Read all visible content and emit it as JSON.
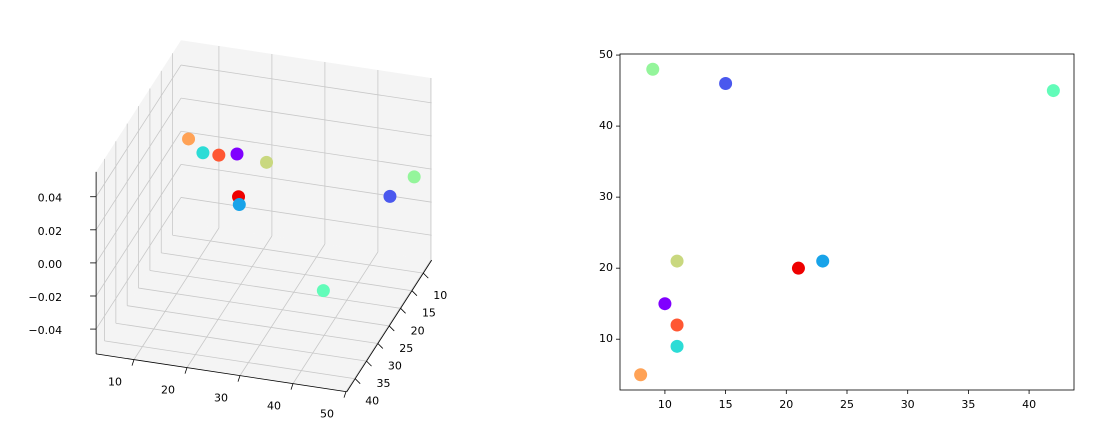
{
  "chart_data": [
    {
      "type": "scatter3d",
      "x": [
        9,
        15,
        42,
        11,
        21,
        23,
        10,
        11,
        11,
        8
      ],
      "y": [
        48,
        46,
        45,
        21,
        20,
        21,
        15,
        12,
        9,
        5
      ],
      "z": [
        0,
        0,
        0,
        0,
        0,
        0,
        0,
        0,
        0,
        0
      ],
      "colors": [
        "#94f59b",
        "#4a58ee",
        "#62fcb9",
        "#c9d87f",
        "#ee0000",
        "#18a3e9",
        "#8000ff",
        "#ff5733",
        "#2cdcd6",
        "#ffa256"
      ],
      "xlim": [
        6.3,
        43.7
      ],
      "ylim": [
        2.85,
        50.15
      ],
      "zlim": [
        -0.055,
        0.055
      ],
      "xticks": [
        10,
        15,
        20,
        25,
        30,
        35,
        40
      ],
      "yticks": [
        10,
        20,
        30,
        40,
        50
      ],
      "zticks": [
        {
          "value": -0.04,
          "label": "−0.04"
        },
        {
          "value": -0.02,
          "label": "−0.02"
        },
        {
          "value": 0,
          "label": "0.00"
        },
        0.02,
        0.04
      ],
      "grid": true
    },
    {
      "type": "scatter",
      "x": [
        9,
        15,
        42,
        11,
        21,
        23,
        10,
        11,
        11,
        8
      ],
      "y": [
        48,
        46,
        45,
        21,
        20,
        21,
        15,
        12,
        9,
        5
      ],
      "colors": [
        "#94f59b",
        "#4a58ee",
        "#62fcb9",
        "#c9d87f",
        "#ee0000",
        "#18a3e9",
        "#8000ff",
        "#ff5733",
        "#2cdcd6",
        "#ffa256"
      ],
      "xlim": [
        6.3,
        43.7
      ],
      "ylim": [
        2.85,
        50.15
      ],
      "xticks": [
        10,
        15,
        20,
        25,
        30,
        35,
        40
      ],
      "yticks": [
        10,
        20,
        30,
        40,
        50
      ]
    }
  ]
}
